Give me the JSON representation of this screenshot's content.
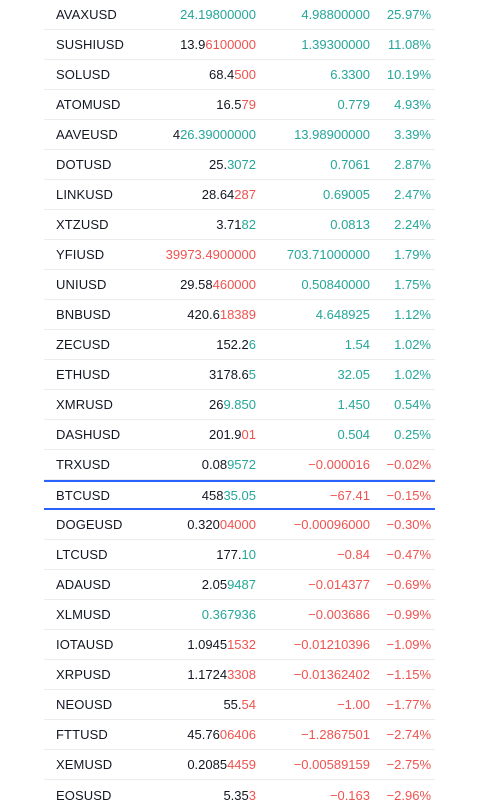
{
  "rows": [
    {
      "symbol": "AVAXUSD",
      "price_base": "",
      "price_hl": "24.19800000",
      "price_hl_color": "green",
      "change": "4.98800000",
      "change_color": "green",
      "pct": "25.97%",
      "pct_color": "green"
    },
    {
      "symbol": "SUSHIUSD",
      "price_base": "13.9",
      "price_hl": "6100000",
      "price_hl_color": "red",
      "change": "1.39300000",
      "change_color": "green",
      "pct": "11.08%",
      "pct_color": "green"
    },
    {
      "symbol": "SOLUSD",
      "price_base": "68.4",
      "price_hl": "500",
      "price_hl_color": "red",
      "change": "6.3300",
      "change_color": "green",
      "pct": "10.19%",
      "pct_color": "green"
    },
    {
      "symbol": "ATOMUSD",
      "price_base": "16.5",
      "price_hl": "79",
      "price_hl_color": "red",
      "change": "0.779",
      "change_color": "green",
      "pct": "4.93%",
      "pct_color": "green"
    },
    {
      "symbol": "AAVEUSD",
      "price_base": "4",
      "price_hl": "26.39000000",
      "price_hl_color": "green",
      "change": "13.98900000",
      "change_color": "green",
      "pct": "3.39%",
      "pct_color": "green"
    },
    {
      "symbol": "DOTUSD",
      "price_base": "25.",
      "price_hl": "3072",
      "price_hl_color": "green",
      "change": "0.7061",
      "change_color": "green",
      "pct": "2.87%",
      "pct_color": "green"
    },
    {
      "symbol": "LINKUSD",
      "price_base": "28.64",
      "price_hl": "287",
      "price_hl_color": "red",
      "change": "0.69005",
      "change_color": "green",
      "pct": "2.47%",
      "pct_color": "green"
    },
    {
      "symbol": "XTZUSD",
      "price_base": "3.71",
      "price_hl": "82",
      "price_hl_color": "green",
      "change": "0.0813",
      "change_color": "green",
      "pct": "2.24%",
      "pct_color": "green"
    },
    {
      "symbol": "YFIUSD",
      "price_base": "",
      "price_hl": "39973.4900000",
      "price_hl_color": "red",
      "change": "703.71000000",
      "change_color": "green",
      "pct": "1.79%",
      "pct_color": "green"
    },
    {
      "symbol": "UNIUSD",
      "price_base": "29.58",
      "price_hl": "460000",
      "price_hl_color": "red",
      "change": "0.50840000",
      "change_color": "green",
      "pct": "1.75%",
      "pct_color": "green"
    },
    {
      "symbol": "BNBUSD",
      "price_base": "420.6",
      "price_hl": "18389",
      "price_hl_color": "red",
      "change": "4.648925",
      "change_color": "green",
      "pct": "1.12%",
      "pct_color": "green"
    },
    {
      "symbol": "ZECUSD",
      "price_base": "152.2",
      "price_hl": "6",
      "price_hl_color": "green",
      "change": "1.54",
      "change_color": "green",
      "pct": "1.02%",
      "pct_color": "green"
    },
    {
      "symbol": "ETHUSD",
      "price_base": "3178.6",
      "price_hl": "5",
      "price_hl_color": "green",
      "change": "32.05",
      "change_color": "green",
      "pct": "1.02%",
      "pct_color": "green"
    },
    {
      "symbol": "XMRUSD",
      "price_base": "26",
      "price_hl": "9.850",
      "price_hl_color": "green",
      "change": "1.450",
      "change_color": "green",
      "pct": "0.54%",
      "pct_color": "green"
    },
    {
      "symbol": "DASHUSD",
      "price_base": "201.9",
      "price_hl": "01",
      "price_hl_color": "red",
      "change": "0.504",
      "change_color": "green",
      "pct": "0.25%",
      "pct_color": "green"
    },
    {
      "symbol": "TRXUSD",
      "price_base": "0.08",
      "price_hl": "9572",
      "price_hl_color": "green",
      "change": "−0.000016",
      "change_color": "red",
      "pct": "−0.02%",
      "pct_color": "red"
    },
    {
      "symbol": "BTCUSD",
      "price_base": "458",
      "price_hl": "35.05",
      "price_hl_color": "green",
      "change": "−67.41",
      "change_color": "red",
      "pct": "−0.15%",
      "pct_color": "red",
      "highlight": true
    },
    {
      "symbol": "DOGEUSD",
      "price_base": "0.320",
      "price_hl": "04000",
      "price_hl_color": "red",
      "change": "−0.00096000",
      "change_color": "red",
      "pct": "−0.30%",
      "pct_color": "red"
    },
    {
      "symbol": "LTCUSD",
      "price_base": "177.",
      "price_hl": "10",
      "price_hl_color": "green",
      "change": "−0.84",
      "change_color": "red",
      "pct": "−0.47%",
      "pct_color": "red"
    },
    {
      "symbol": "ADAUSD",
      "price_base": "2.05",
      "price_hl": "9487",
      "price_hl_color": "green",
      "change": "−0.014377",
      "change_color": "red",
      "pct": "−0.69%",
      "pct_color": "red"
    },
    {
      "symbol": "XLMUSD",
      "price_base": "",
      "price_hl": "0.367936",
      "price_hl_color": "green",
      "change": "−0.003686",
      "change_color": "red",
      "pct": "−0.99%",
      "pct_color": "red"
    },
    {
      "symbol": "IOTAUSD",
      "price_base": "1.0945",
      "price_hl": "1532",
      "price_hl_color": "red",
      "change": "−0.01210396",
      "change_color": "red",
      "pct": "−1.09%",
      "pct_color": "red"
    },
    {
      "symbol": "XRPUSD",
      "price_base": "1.1724",
      "price_hl": "3308",
      "price_hl_color": "red",
      "change": "−0.01362402",
      "change_color": "red",
      "pct": "−1.15%",
      "pct_color": "red"
    },
    {
      "symbol": "NEOUSD",
      "price_base": "55.",
      "price_hl": "54",
      "price_hl_color": "red",
      "change": "−1.00",
      "change_color": "red",
      "pct": "−1.77%",
      "pct_color": "red"
    },
    {
      "symbol": "FTTUSD",
      "price_base": "45.76",
      "price_hl": "06406",
      "price_hl_color": "red",
      "change": "−1.2867501",
      "change_color": "red",
      "pct": "−2.74%",
      "pct_color": "red"
    },
    {
      "symbol": "XEMUSD",
      "price_base": "0.2085",
      "price_hl": "4459",
      "price_hl_color": "red",
      "change": "−0.00589159",
      "change_color": "red",
      "pct": "−2.75%",
      "pct_color": "red"
    },
    {
      "symbol": "EOSUSD",
      "price_base": "5.35",
      "price_hl": "3",
      "price_hl_color": "red",
      "change": "−0.163",
      "change_color": "red",
      "pct": "−2.96%",
      "pct_color": "red"
    }
  ]
}
